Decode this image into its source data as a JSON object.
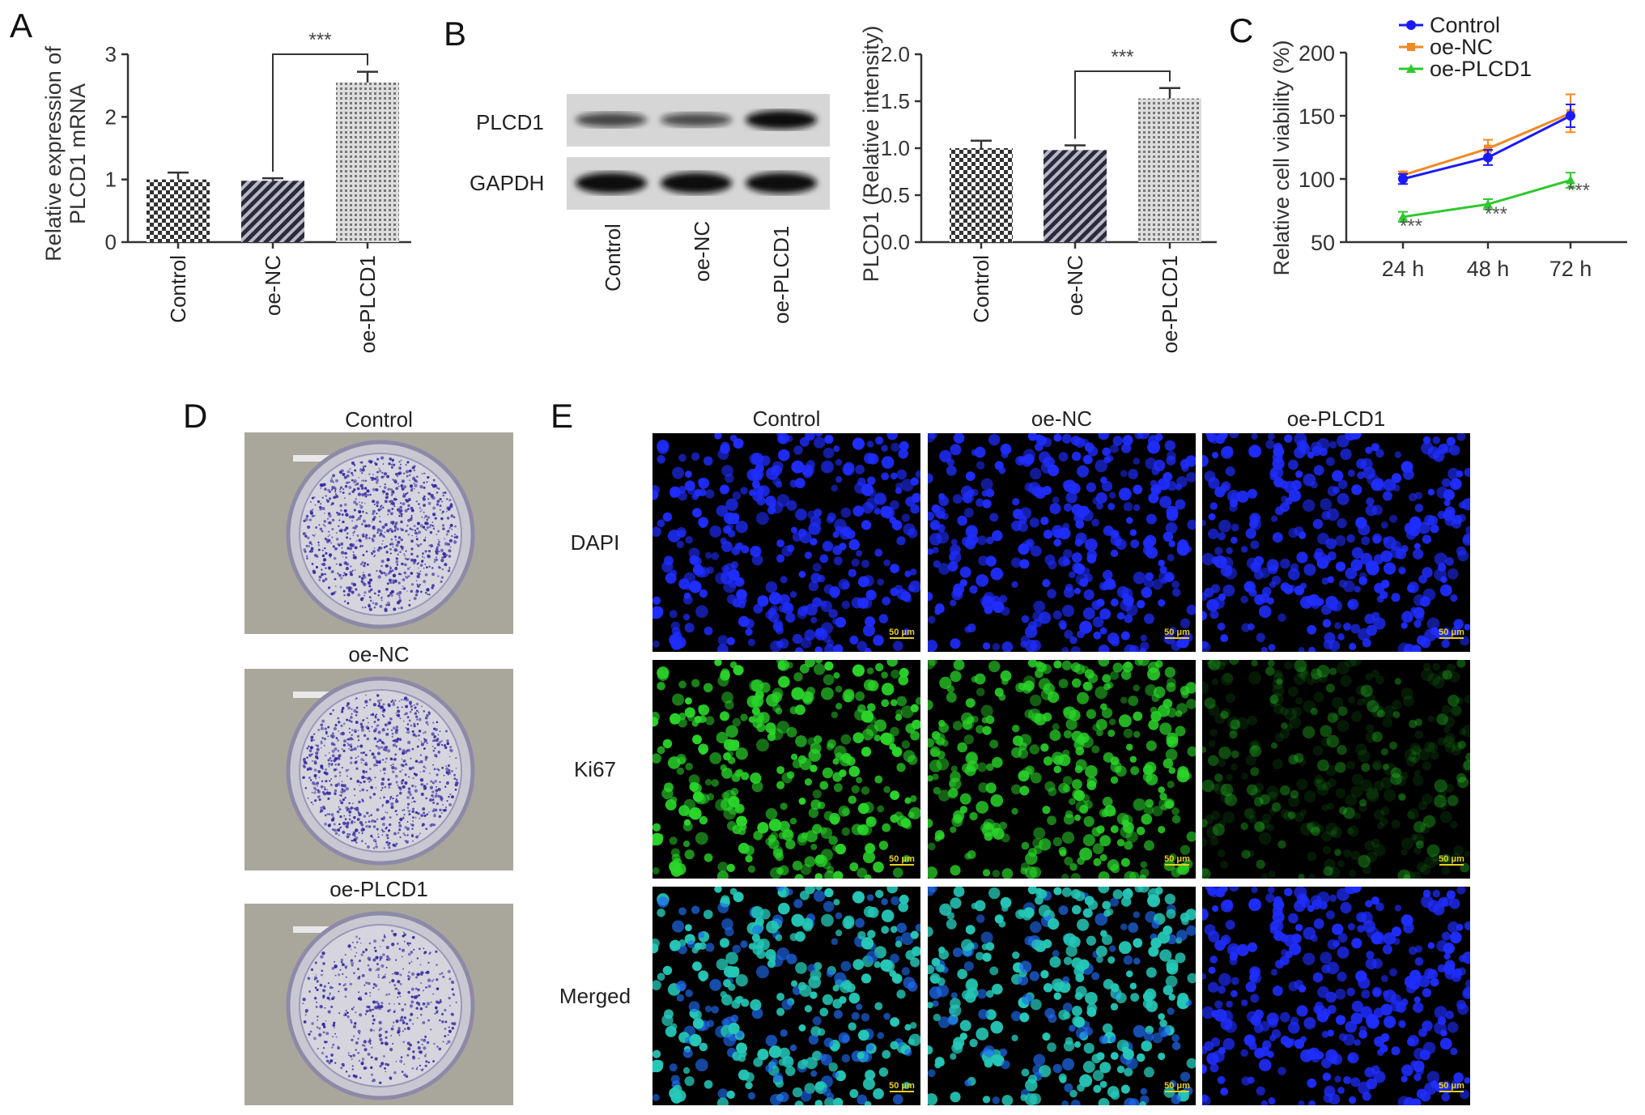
{
  "panels": {
    "a": "A",
    "b": "B",
    "c": "C",
    "d": "D",
    "e": "E"
  },
  "groups": [
    "Control",
    "oe-NC",
    "oe-PLCD1"
  ],
  "chart_data": [
    {
      "type": "bar",
      "panel": "A",
      "categories": [
        "Control",
        "oe-NC",
        "oe-PLCD1"
      ],
      "values": [
        1.0,
        0.98,
        2.55
      ],
      "errors": [
        0.11,
        0.04,
        0.17
      ],
      "ylabel": "Relative expression of PLCD1 mRNA",
      "ylabel_lines": [
        "Relative expression of",
        "PLCD1 mRNA"
      ],
      "ylim": [
        0,
        3
      ],
      "yticks": [
        "0",
        "1",
        "2",
        "3"
      ],
      "significance": {
        "between": [
          "oe-NC",
          "oe-PLCD1"
        ],
        "label": "***"
      },
      "patterns": [
        "checker",
        "diagonal",
        "dots"
      ]
    },
    {
      "type": "bar",
      "panel": "B",
      "categories": [
        "Control",
        "oe-NC",
        "oe-PLCD1"
      ],
      "values": [
        1.0,
        0.98,
        1.53
      ],
      "errors": [
        0.08,
        0.05,
        0.11
      ],
      "ylabel": "PLCD1 (Relative intensity)",
      "ylim": [
        0,
        2.0
      ],
      "yticks": [
        "0.0",
        "0.5",
        "1.0",
        "1.5",
        "2.0"
      ],
      "significance": {
        "between": [
          "oe-NC",
          "oe-PLCD1"
        ],
        "label": "***"
      },
      "patterns": [
        "checker",
        "diagonal",
        "dots"
      ]
    },
    {
      "type": "line",
      "panel": "C",
      "categories": [
        "24 h",
        "48 h",
        "72 h"
      ],
      "ylabel": "Relative cell viability (%)",
      "ylim": [
        50,
        200
      ],
      "yticks": [
        "50",
        "100",
        "150",
        "200"
      ],
      "legend_position": "top",
      "series": [
        {
          "name": "Control",
          "values": [
            100,
            117,
            150
          ],
          "errors": [
            4,
            6,
            9
          ],
          "color": "#1a1aff",
          "marker": "circle"
        },
        {
          "name": "oe-NC",
          "values": [
            103,
            124,
            152
          ],
          "errors": [
            3,
            7,
            15
          ],
          "color": "#f08a24",
          "marker": "square"
        },
        {
          "name": "oe-PLCD1",
          "values": [
            70,
            80,
            99
          ],
          "errors": [
            4,
            4,
            6
          ],
          "color": "#2ec82e",
          "marker": "triangle"
        }
      ],
      "annotations": [
        "***",
        "***",
        "***"
      ]
    }
  ],
  "blot": {
    "rows": [
      "PLCD1",
      "GAPDH"
    ],
    "lanes": [
      "Control",
      "oe-NC",
      "oe-PLCD1"
    ],
    "band_intensity": {
      "PLCD1": [
        0.55,
        0.5,
        0.95
      ],
      "GAPDH": [
        1,
        1,
        1
      ]
    }
  },
  "colony": {
    "titles": [
      "Control",
      "oe-NC",
      "oe-PLCD1"
    ],
    "density": [
      1.0,
      0.95,
      0.55
    ]
  },
  "fluorescence": {
    "columns": [
      "Control",
      "oe-NC",
      "oe-PLCD1"
    ],
    "rows": [
      "DAPI",
      "Ki67",
      "Merged"
    ],
    "scale_bar": "50 μm",
    "colors": {
      "dapi": "#1f2dff",
      "ki67": "#2ad62a",
      "merged": "#25c8b8"
    },
    "ki67_level": [
      1.0,
      0.9,
      0.12
    ]
  }
}
